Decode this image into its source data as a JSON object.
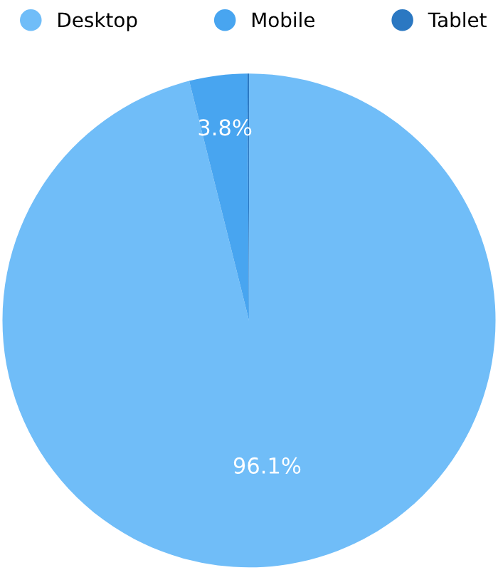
{
  "chart_data": {
    "type": "pie",
    "categories": [
      "Desktop",
      "Mobile",
      "Tablet"
    ],
    "values": [
      96.1,
      3.8,
      0.1
    ],
    "colors": [
      "#70bdf8",
      "#48a5f0",
      "#2b78c2"
    ],
    "value_labels": [
      "96.1%",
      "3.8%",
      null
    ],
    "legend": "top"
  }
}
